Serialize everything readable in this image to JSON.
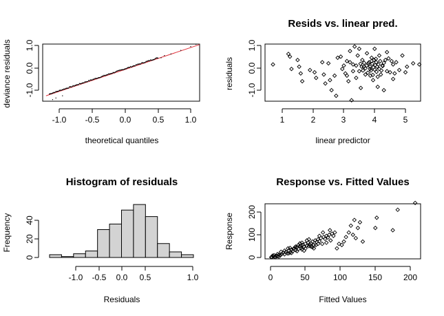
{
  "chart_data": [
    {
      "type": "scatter",
      "title": "",
      "xlabel": "theoretical quantiles",
      "ylabel": "deviance residuals",
      "xlim": [
        -1.2,
        1.2
      ],
      "ylim": [
        -1.45,
        1.2
      ],
      "xticks": [
        "-1.0",
        "-0.5",
        "0.0",
        "0.5",
        "1.0"
      ],
      "xtick_values": [
        -1.0,
        -0.5,
        0.0,
        0.5,
        1.0
      ],
      "yticks": [
        "-1.0",
        "0.0",
        "1.0"
      ],
      "ytick_values": [
        -1.0,
        0.0,
        1.0
      ],
      "reference_line": {
        "x": [
          -1.2,
          1.2
        ],
        "y": [
          -1.25,
          1.1
        ],
        "color": "#e0303a"
      },
      "points": {
        "x_start": -1.15,
        "x_end": 0.5,
        "slope": 0.98,
        "intercept": -0.04,
        "n": 120,
        "noise": 0.04
      },
      "extra_points": [
        {
          "x": -1.1,
          "y": -1.42
        },
        {
          "x": -1.05,
          "y": -1.35
        },
        {
          "x": -0.95,
          "y": -1.25
        },
        {
          "x": 0.55,
          "y": 0.45
        },
        {
          "x": 0.6,
          "y": 0.55
        },
        {
          "x": 0.7,
          "y": 0.62
        },
        {
          "x": 0.85,
          "y": 0.78
        },
        {
          "x": 1.0,
          "y": 0.95
        },
        {
          "x": 1.08,
          "y": 1.05
        }
      ]
    },
    {
      "type": "scatter",
      "title": "Resids vs. linear pred.",
      "xlabel": "linear predictor",
      "ylabel": "residuals",
      "xlim": [
        0.55,
        5.55
      ],
      "ylim": [
        -1.45,
        1.2
      ],
      "xticks": [
        "1",
        "2",
        "3",
        "4",
        "5"
      ],
      "xtick_values": [
        1,
        2,
        3,
        4,
        5
      ],
      "yticks": [
        "-1.0",
        "0.0",
        "1.0"
      ],
      "ytick_values": [
        -1.0,
        0.0,
        1.0
      ],
      "points": [
        [
          0.7,
          0.15
        ],
        [
          1.2,
          0.62
        ],
        [
          1.25,
          0.5
        ],
        [
          1.3,
          -0.05
        ],
        [
          1.5,
          0.35
        ],
        [
          1.55,
          0.05
        ],
        [
          1.6,
          -0.25
        ],
        [
          1.65,
          -0.6
        ],
        [
          1.9,
          -0.1
        ],
        [
          2.05,
          -0.2
        ],
        [
          2.1,
          -0.45
        ],
        [
          2.3,
          0.25
        ],
        [
          2.35,
          -0.3
        ],
        [
          2.4,
          -0.7
        ],
        [
          2.5,
          0.2
        ],
        [
          2.55,
          -0.55
        ],
        [
          2.6,
          -1.0
        ],
        [
          2.7,
          -0.35
        ],
        [
          2.75,
          -1.25
        ],
        [
          2.8,
          0.45
        ],
        [
          2.9,
          0.5
        ],
        [
          2.95,
          -0.05
        ],
        [
          3.0,
          0.1
        ],
        [
          3.05,
          -0.25
        ],
        [
          3.1,
          0.3
        ],
        [
          3.15,
          -0.6
        ],
        [
          3.2,
          0.75
        ],
        [
          3.25,
          -1.45
        ],
        [
          3.3,
          0.15
        ],
        [
          3.35,
          0.95
        ],
        [
          3.4,
          -0.45
        ],
        [
          3.45,
          0.55
        ],
        [
          3.5,
          0.85
        ],
        [
          3.5,
          -0.15
        ],
        [
          3.55,
          -0.9
        ],
        [
          3.6,
          0.35
        ],
        [
          3.65,
          0.05
        ],
        [
          3.7,
          -0.3
        ],
        [
          3.75,
          0.65
        ],
        [
          3.8,
          0.2
        ],
        [
          3.85,
          -0.05
        ],
        [
          3.9,
          0.45
        ],
        [
          3.95,
          -0.55
        ],
        [
          4.0,
          0.85
        ],
        [
          4.05,
          0.25
        ],
        [
          4.1,
          -0.85
        ],
        [
          4.15,
          0.55
        ],
        [
          4.2,
          -0.3
        ],
        [
          4.25,
          0.1
        ],
        [
          4.3,
          -1.0
        ],
        [
          4.35,
          0.35
        ],
        [
          4.4,
          0.7
        ],
        [
          4.5,
          -0.2
        ],
        [
          4.55,
          0.3
        ],
        [
          4.6,
          -0.5
        ],
        [
          4.7,
          0.25
        ],
        [
          4.8,
          -0.1
        ],
        [
          4.9,
          0.55
        ],
        [
          5.0,
          -0.2
        ],
        [
          5.05,
          0.05
        ],
        [
          5.25,
          0.2
        ],
        [
          5.45,
          0.15
        ],
        [
          3.85,
          0.05
        ],
        [
          3.88,
          -0.12
        ],
        [
          3.92,
          0.18
        ],
        [
          3.96,
          0.02
        ],
        [
          4.0,
          -0.08
        ],
        [
          4.02,
          0.12
        ],
        [
          4.06,
          -0.18
        ],
        [
          4.08,
          0.05
        ],
        [
          3.82,
          0.25
        ],
        [
          3.78,
          -0.22
        ],
        [
          4.12,
          0.15
        ],
        [
          4.15,
          -0.05
        ],
        [
          3.74,
          0.1
        ],
        [
          3.7,
          -0.02
        ],
        [
          4.18,
          0.3
        ],
        [
          4.22,
          -0.12
        ],
        [
          3.66,
          0.22
        ],
        [
          3.62,
          -0.12
        ],
        [
          3.58,
          0.05
        ],
        [
          3.54,
          0.18
        ],
        [
          4.26,
          0.08
        ],
        [
          4.3,
          0.22
        ],
        [
          3.98,
          0.35
        ],
        [
          3.94,
          -0.32
        ],
        [
          4.04,
          0.4
        ],
        [
          3.9,
          0.3
        ],
        [
          3.86,
          -0.35
        ],
        [
          4.1,
          -0.4
        ],
        [
          3.4,
          0.1
        ],
        [
          3.3,
          -0.15
        ],
        [
          3.2,
          0.25
        ],
        [
          3.1,
          -0.35
        ],
        [
          4.4,
          -0.15
        ],
        [
          4.45,
          0.42
        ],
        [
          4.6,
          0.15
        ],
        [
          4.65,
          -0.25
        ]
      ]
    },
    {
      "type": "bar",
      "title": "Histogram of residuals",
      "xlabel": "Residuals",
      "ylabel": "Frequency",
      "bin_edges": [
        -1.4,
        -1.2,
        -1.0,
        -0.8,
        -0.6,
        -0.4,
        -0.2,
        0.0,
        0.2,
        0.4,
        0.6,
        0.8,
        1.0
      ],
      "values": [
        3,
        1,
        4,
        7,
        30,
        36,
        51,
        57,
        44,
        15,
        6,
        3
      ],
      "bar_color": "#d3d3d3",
      "xlim": [
        -1.4,
        1.0
      ],
      "ylim": [
        0,
        57
      ],
      "xticks": [
        "-1.0",
        "-0.5",
        "0.0",
        "0.5",
        "1.0"
      ],
      "xtick_values": [
        -1.0,
        -0.5,
        0.0,
        0.5,
        1.0
      ],
      "yticks": [
        "0",
        "20",
        "40"
      ],
      "ytick_values": [
        0,
        20,
        40
      ]
    },
    {
      "type": "scatter",
      "title": "Response vs. Fitted Values",
      "xlabel": "Fitted Values",
      "ylabel": "Response",
      "xlim": [
        0,
        210
      ],
      "ylim": [
        0,
        240
      ],
      "xticks": [
        "0",
        "50",
        "100",
        "150",
        "200"
      ],
      "xtick_values": [
        0,
        50,
        100,
        150,
        200
      ],
      "yticks": [
        "0",
        "100",
        "200"
      ],
      "ytick_values": [
        0,
        100,
        200
      ],
      "points": [
        [
          2,
          2
        ],
        [
          4,
          5
        ],
        [
          6,
          3
        ],
        [
          8,
          8
        ],
        [
          10,
          6
        ],
        [
          12,
          12
        ],
        [
          14,
          9
        ],
        [
          16,
          15
        ],
        [
          18,
          20
        ],
        [
          20,
          14
        ],
        [
          22,
          25
        ],
        [
          24,
          18
        ],
        [
          26,
          30
        ],
        [
          28,
          22
        ],
        [
          30,
          35
        ],
        [
          32,
          28
        ],
        [
          34,
          40
        ],
        [
          36,
          32
        ],
        [
          38,
          45
        ],
        [
          40,
          38
        ],
        [
          42,
          50
        ],
        [
          44,
          42
        ],
        [
          46,
          55
        ],
        [
          48,
          47
        ],
        [
          50,
          60
        ],
        [
          52,
          52
        ],
        [
          54,
          65
        ],
        [
          56,
          58
        ],
        [
          58,
          62
        ],
        [
          60,
          70
        ],
        [
          62,
          55
        ],
        [
          64,
          75
        ],
        [
          66,
          68
        ],
        [
          68,
          80
        ],
        [
          70,
          72
        ],
        [
          72,
          85
        ],
        [
          74,
          60
        ],
        [
          76,
          90
        ],
        [
          78,
          82
        ],
        [
          80,
          95
        ],
        [
          82,
          88
        ],
        [
          84,
          100
        ],
        [
          86,
          75
        ],
        [
          88,
          105
        ],
        [
          90,
          95
        ],
        [
          92,
          110
        ],
        [
          95,
          40
        ],
        [
          98,
          60
        ],
        [
          102,
          55
        ],
        [
          105,
          70
        ],
        [
          108,
          90
        ],
        [
          112,
          110
        ],
        [
          115,
          140
        ],
        [
          118,
          100
        ],
        [
          120,
          165
        ],
        [
          122,
          85
        ],
        [
          125,
          130
        ],
        [
          128,
          155
        ],
        [
          132,
          70
        ],
        [
          150,
          130
        ],
        [
          152,
          175
        ],
        [
          175,
          120
        ],
        [
          182,
          210
        ],
        [
          207,
          240
        ],
        [
          35,
          45
        ],
        [
          40,
          55
        ],
        [
          45,
          35
        ],
        [
          50,
          40
        ],
        [
          55,
          80
        ],
        [
          60,
          45
        ],
        [
          65,
          55
        ],
        [
          70,
          95
        ],
        [
          42,
          62
        ],
        [
          48,
          30
        ],
        [
          52,
          75
        ],
        [
          58,
          48
        ],
        [
          30,
          20
        ],
        [
          25,
          40
        ],
        [
          20,
          30
        ],
        [
          15,
          25
        ],
        [
          10,
          15
        ],
        [
          5,
          10
        ],
        [
          45,
          65
        ],
        [
          55,
          50
        ],
        [
          62,
          40
        ],
        [
          68,
          60
        ],
        [
          75,
          110
        ],
        [
          80,
          65
        ],
        [
          85,
          120
        ],
        [
          38,
          28
        ],
        [
          44,
          52
        ],
        [
          36,
          48
        ],
        [
          33,
          38
        ],
        [
          28,
          42
        ],
        [
          26,
          18
        ],
        [
          3,
          8
        ],
        [
          7,
          1
        ],
        [
          12,
          4
        ],
        [
          1,
          1
        ]
      ]
    }
  ]
}
